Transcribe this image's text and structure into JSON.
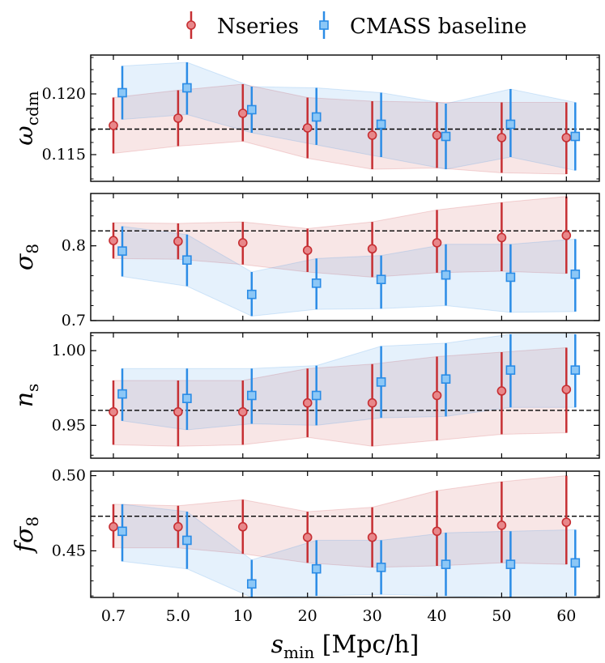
{
  "legend": {
    "entries": [
      "Nseries",
      "CMASS baseline"
    ]
  },
  "xaxis": {
    "label_var": "s",
    "label_sub": "min",
    "label_unit": "[Mpc/h]"
  },
  "chart_data": [
    {
      "type": "scatter",
      "ylabel": "ω_cdm",
      "ylim": [
        0.1128,
        0.1232
      ],
      "yticks": [
        "0.115",
        "0.120"
      ],
      "ytick_values": [
        0.115,
        0.12
      ],
      "reference_line": 0.1171,
      "categories": [
        "0.7",
        "5.0",
        "10",
        "20",
        "30",
        "40",
        "50",
        "60"
      ],
      "series": [
        {
          "name": "Nseries",
          "color": "#c62f33",
          "values": [
            0.1174,
            0.118,
            0.1184,
            0.1172,
            0.1166,
            0.1166,
            0.1164,
            0.1164
          ],
          "lower": [
            0.1151,
            0.1157,
            0.1161,
            0.1147,
            0.1138,
            0.1139,
            0.1135,
            0.1134
          ],
          "upper": [
            0.1197,
            0.1203,
            0.1208,
            0.1197,
            0.1194,
            0.1193,
            0.1193,
            0.1193
          ]
        },
        {
          "name": "CMASS baseline",
          "color": "#2b8ce6",
          "values": [
            0.1201,
            0.1205,
            0.1187,
            0.1181,
            0.1175,
            0.1165,
            0.1175,
            0.1165
          ],
          "lower": [
            0.1179,
            0.1183,
            0.1168,
            0.1158,
            0.1148,
            0.1138,
            0.1148,
            0.1137
          ],
          "upper": [
            0.1223,
            0.1226,
            0.1206,
            0.1205,
            0.1201,
            0.1192,
            0.1204,
            0.1193
          ]
        }
      ]
    },
    {
      "type": "scatter",
      "ylabel": "σ_8",
      "ylim": [
        0.7,
        0.87
      ],
      "yticks": [
        "0.7",
        "0.8"
      ],
      "ytick_values": [
        0.7,
        0.8
      ],
      "reference_line": 0.82,
      "categories": [
        "0.7",
        "5.0",
        "10",
        "20",
        "30",
        "40",
        "50",
        "60"
      ],
      "series": [
        {
          "name": "Nseries",
          "color": "#c62f33",
          "values": [
            0.807,
            0.806,
            0.804,
            0.794,
            0.796,
            0.804,
            0.811,
            0.814
          ],
          "lower": [
            0.783,
            0.782,
            0.775,
            0.765,
            0.758,
            0.764,
            0.766,
            0.763
          ],
          "upper": [
            0.831,
            0.83,
            0.832,
            0.823,
            0.832,
            0.848,
            0.858,
            0.866
          ]
        },
        {
          "name": "CMASS baseline",
          "color": "#2b8ce6",
          "values": [
            0.793,
            0.781,
            0.735,
            0.75,
            0.755,
            0.761,
            0.758,
            0.762
          ],
          "lower": [
            0.759,
            0.746,
            0.706,
            0.715,
            0.716,
            0.72,
            0.711,
            0.712
          ],
          "upper": [
            0.826,
            0.815,
            0.765,
            0.783,
            0.787,
            0.802,
            0.802,
            0.809
          ]
        }
      ]
    },
    {
      "type": "scatter",
      "ylabel": "n_s",
      "ylim": [
        0.928,
        1.012
      ],
      "yticks": [
        "0.95",
        "1.00"
      ],
      "ytick_values": [
        0.95,
        1.0
      ],
      "reference_line": 0.96,
      "categories": [
        "0.7",
        "5.0",
        "10",
        "20",
        "30",
        "40",
        "50",
        "60"
      ],
      "series": [
        {
          "name": "Nseries",
          "color": "#c62f33",
          "values": [
            0.959,
            0.959,
            0.959,
            0.965,
            0.965,
            0.97,
            0.973,
            0.974
          ],
          "lower": [
            0.937,
            0.936,
            0.937,
            0.942,
            0.936,
            0.94,
            0.944,
            0.945
          ],
          "upper": [
            0.98,
            0.98,
            0.98,
            0.988,
            0.991,
            0.996,
            0.999,
            1.002
          ]
        },
        {
          "name": "CMASS baseline",
          "color": "#2b8ce6",
          "values": [
            0.971,
            0.968,
            0.97,
            0.97,
            0.979,
            0.981,
            0.987,
            0.987
          ],
          "lower": [
            0.953,
            0.947,
            0.951,
            0.95,
            0.955,
            0.956,
            0.962,
            0.962
          ],
          "upper": [
            0.988,
            0.988,
            0.988,
            0.99,
            1.003,
            1.005,
            1.011,
            1.011
          ]
        }
      ]
    },
    {
      "type": "scatter",
      "ylabel": "fσ_8",
      "ylim": [
        0.419,
        0.503
      ],
      "yticks": [
        "0.45",
        "0.50"
      ],
      "ytick_values": [
        0.45,
        0.5
      ],
      "reference_line": 0.473,
      "categories": [
        "0.7",
        "5.0",
        "10",
        "20",
        "30",
        "40",
        "50",
        "60"
      ],
      "series": [
        {
          "name": "Nseries",
          "color": "#c62f33",
          "values": [
            0.466,
            0.466,
            0.466,
            0.459,
            0.459,
            0.463,
            0.467,
            0.469
          ],
          "lower": [
            0.452,
            0.452,
            0.448,
            0.442,
            0.439,
            0.44,
            0.442,
            0.441
          ],
          "upper": [
            0.481,
            0.48,
            0.484,
            0.476,
            0.479,
            0.49,
            0.496,
            0.5
          ]
        },
        {
          "name": "CMASS baseline",
          "color": "#2b8ce6",
          "values": [
            0.463,
            0.457,
            0.428,
            0.438,
            0.439,
            0.441,
            0.441,
            0.442
          ],
          "lower": [
            0.443,
            0.438,
            0.419,
            0.42,
            0.421,
            0.42,
            0.419,
            0.42
          ],
          "upper": [
            0.481,
            0.476,
            0.444,
            0.457,
            0.457,
            0.462,
            0.463,
            0.464
          ]
        }
      ]
    }
  ]
}
